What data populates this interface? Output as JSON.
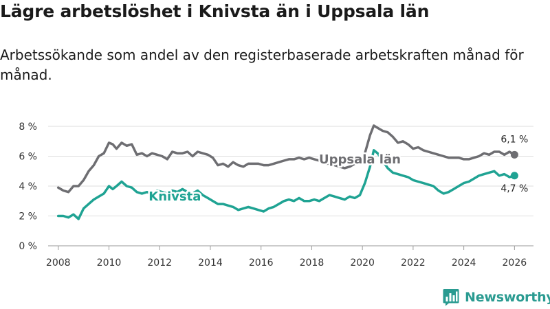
{
  "title": "Lägre arbetslöshet i Knivsta än i Uppsala län",
  "subtitle": "Arbetssökande som andel av den registerbaserade arbetskraften månad för månad.",
  "brand": {
    "name": "Newsworthy",
    "color": "#2a9b91",
    "icon": "bar-chart-logo-icon"
  },
  "chart_data": {
    "type": "line",
    "x_unit": "year",
    "xlim": [
      2007.6,
      2026.75
    ],
    "ylim": [
      0,
      8
    ],
    "yticks": [
      0,
      2,
      4,
      6,
      8
    ],
    "ytick_labels": [
      "0 %",
      "2 %",
      "4 %",
      "6 %",
      "8 %"
    ],
    "xticks": [
      2008,
      2010,
      2012,
      2014,
      2016,
      2018,
      2020,
      2022,
      2024,
      2026
    ],
    "xtick_labels": [
      "2008",
      "2010",
      "2012",
      "2014",
      "2016",
      "2018",
      "2020",
      "2022",
      "2024",
      "2026"
    ],
    "grid": true,
    "series": [
      {
        "name": "Uppsala län",
        "color": "#6e6e72",
        "end_label": "6,1 %",
        "x": [
          2008.0,
          2008.2,
          2008.4,
          2008.6,
          2008.8,
          2009.0,
          2009.2,
          2009.4,
          2009.6,
          2009.8,
          2010.0,
          2010.15,
          2010.3,
          2010.5,
          2010.7,
          2010.9,
          2011.1,
          2011.3,
          2011.5,
          2011.7,
          2011.9,
          2012.1,
          2012.3,
          2012.5,
          2012.7,
          2012.9,
          2013.1,
          2013.3,
          2013.5,
          2013.7,
          2013.9,
          2014.1,
          2014.3,
          2014.5,
          2014.7,
          2014.9,
          2015.1,
          2015.3,
          2015.5,
          2015.7,
          2015.9,
          2016.1,
          2016.3,
          2016.5,
          2016.7,
          2016.9,
          2017.1,
          2017.3,
          2017.5,
          2017.7,
          2017.9,
          2018.1,
          2018.3,
          2018.5,
          2018.7,
          2018.9,
          2019.1,
          2019.3,
          2019.5,
          2019.7,
          2019.9,
          2020.1,
          2020.3,
          2020.45,
          2020.6,
          2020.8,
          2021.0,
          2021.2,
          2021.4,
          2021.6,
          2021.8,
          2022.0,
          2022.2,
          2022.4,
          2022.6,
          2022.8,
          2023.0,
          2023.2,
          2023.4,
          2023.6,
          2023.8,
          2024.0,
          2024.2,
          2024.4,
          2024.6,
          2024.8,
          2025.0,
          2025.2,
          2025.4,
          2025.6,
          2025.8,
          2026.0
        ],
        "values": [
          3.9,
          3.7,
          3.6,
          4.0,
          4.0,
          4.4,
          5.0,
          5.4,
          6.0,
          6.2,
          6.9,
          6.8,
          6.5,
          6.9,
          6.7,
          6.8,
          6.1,
          6.2,
          6.0,
          6.2,
          6.1,
          6.0,
          5.8,
          6.3,
          6.2,
          6.2,
          6.3,
          6.0,
          6.3,
          6.2,
          6.1,
          5.9,
          5.4,
          5.5,
          5.3,
          5.6,
          5.4,
          5.3,
          5.5,
          5.5,
          5.5,
          5.4,
          5.4,
          5.5,
          5.6,
          5.7,
          5.8,
          5.8,
          5.9,
          5.8,
          5.9,
          5.8,
          5.7,
          5.5,
          5.5,
          5.4,
          5.3,
          5.2,
          5.3,
          5.5,
          5.5,
          6.2,
          7.4,
          8.05,
          7.9,
          7.7,
          7.6,
          7.3,
          6.9,
          7.0,
          6.8,
          6.5,
          6.6,
          6.4,
          6.3,
          6.2,
          6.1,
          6.0,
          5.9,
          5.9,
          5.9,
          5.8,
          5.8,
          5.9,
          6.0,
          6.2,
          6.1,
          6.3,
          6.3,
          6.1,
          6.3,
          6.1
        ]
      },
      {
        "name": "Knivsta",
        "color": "#1fa393",
        "end_label": "4,7 %",
        "x": [
          2008.0,
          2008.2,
          2008.4,
          2008.6,
          2008.8,
          2009.0,
          2009.2,
          2009.4,
          2009.6,
          2009.8,
          2010.0,
          2010.15,
          2010.3,
          2010.5,
          2010.7,
          2010.9,
          2011.1,
          2011.3,
          2011.5,
          2011.7,
          2011.9,
          2012.1,
          2012.3,
          2012.5,
          2012.7,
          2012.9,
          2013.1,
          2013.3,
          2013.5,
          2013.7,
          2013.9,
          2014.1,
          2014.3,
          2014.5,
          2014.7,
          2014.9,
          2015.1,
          2015.3,
          2015.5,
          2015.7,
          2015.9,
          2016.1,
          2016.3,
          2016.5,
          2016.7,
          2016.9,
          2017.1,
          2017.3,
          2017.5,
          2017.7,
          2017.9,
          2018.1,
          2018.3,
          2018.5,
          2018.7,
          2018.9,
          2019.1,
          2019.3,
          2019.5,
          2019.7,
          2019.9,
          2020.1,
          2020.3,
          2020.45,
          2020.6,
          2020.8,
          2021.0,
          2021.2,
          2021.4,
          2021.6,
          2021.8,
          2022.0,
          2022.2,
          2022.4,
          2022.6,
          2022.8,
          2023.0,
          2023.2,
          2023.4,
          2023.6,
          2023.8,
          2024.0,
          2024.2,
          2024.4,
          2024.6,
          2024.8,
          2025.0,
          2025.2,
          2025.4,
          2025.6,
          2025.8,
          2026.0
        ],
        "values": [
          2.0,
          2.0,
          1.9,
          2.1,
          1.8,
          2.5,
          2.8,
          3.1,
          3.3,
          3.5,
          4.0,
          3.8,
          4.0,
          4.3,
          4.0,
          3.9,
          3.6,
          3.5,
          3.6,
          3.5,
          3.7,
          3.6,
          3.5,
          3.7,
          3.6,
          3.8,
          3.6,
          3.5,
          3.7,
          3.4,
          3.2,
          3.0,
          2.8,
          2.8,
          2.7,
          2.6,
          2.4,
          2.5,
          2.6,
          2.5,
          2.4,
          2.3,
          2.5,
          2.6,
          2.8,
          3.0,
          3.1,
          3.0,
          3.2,
          3.0,
          3.0,
          3.1,
          3.0,
          3.2,
          3.4,
          3.3,
          3.2,
          3.1,
          3.3,
          3.2,
          3.4,
          4.2,
          5.3,
          6.4,
          6.2,
          5.7,
          5.2,
          4.9,
          4.8,
          4.7,
          4.6,
          4.4,
          4.3,
          4.2,
          4.1,
          4.0,
          3.7,
          3.5,
          3.6,
          3.8,
          4.0,
          4.2,
          4.3,
          4.5,
          4.7,
          4.8,
          4.9,
          5.0,
          4.7,
          4.8,
          4.6,
          4.7
        ]
      }
    ],
    "annotations": [
      {
        "series": "Uppsala län",
        "text": "Uppsala län",
        "at_x": 2019.9,
        "at_y": 5.85
      },
      {
        "series": "Knivsta",
        "text": "Knivsta",
        "at_x": 2012.6,
        "at_y": 3.35
      }
    ]
  }
}
